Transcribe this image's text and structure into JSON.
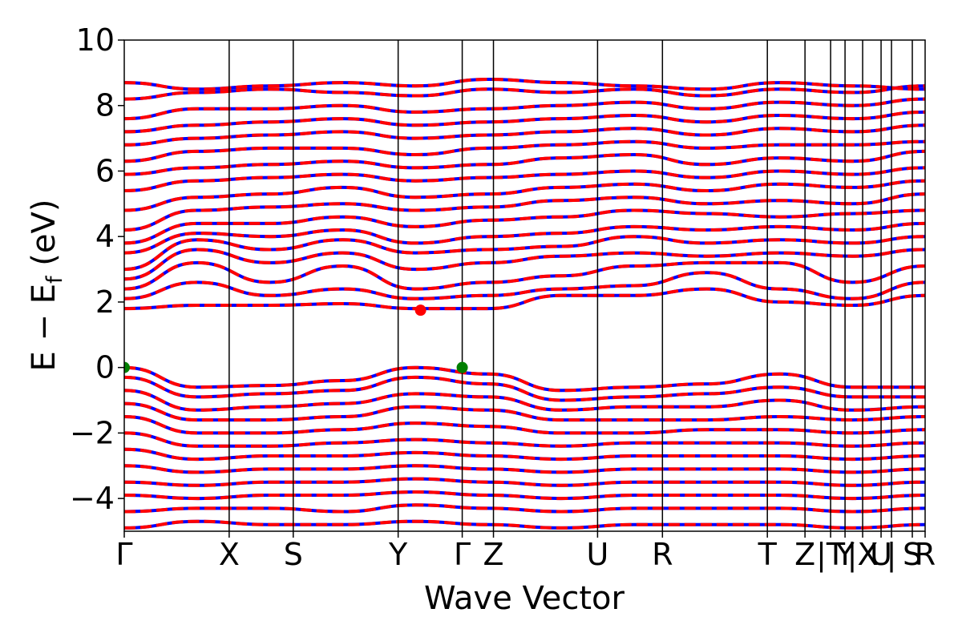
{
  "chart_data": {
    "type": "line",
    "xlabel": "Wave Vector",
    "ylabel_main": "E − E",
    "ylabel_sub": "f",
    "ylabel_unit": " (eV)",
    "ylim": [
      -5,
      10
    ],
    "yticks": [
      {
        "value": 10,
        "label": "10"
      },
      {
        "value": 8,
        "label": "8"
      },
      {
        "value": 6,
        "label": "6"
      },
      {
        "value": 4,
        "label": "4"
      },
      {
        "value": 2,
        "label": "2"
      },
      {
        "value": 0,
        "label": "0"
      },
      {
        "value": -2,
        "label": "−2"
      },
      {
        "value": -4,
        "label": "−4"
      }
    ],
    "xlim": [
      0,
      1
    ],
    "kpoints": [
      {
        "pos": 0.0,
        "label": "Γ"
      },
      {
        "pos": 0.131,
        "label": "X"
      },
      {
        "pos": 0.211,
        "label": "S"
      },
      {
        "pos": 0.342,
        "label": "Y"
      },
      {
        "pos": 0.422,
        "label": "Γ"
      },
      {
        "pos": 0.461,
        "label": "Z"
      },
      {
        "pos": 0.591,
        "label": "U"
      },
      {
        "pos": 0.672,
        "label": "R"
      },
      {
        "pos": 0.803,
        "label": "T"
      },
      {
        "pos": 0.85,
        "label": "Z"
      },
      {
        "pos": 0.882,
        "label": "|T"
      },
      {
        "pos": 0.9,
        "label": "Y"
      },
      {
        "pos": 0.922,
        "label": "|X"
      },
      {
        "pos": 0.945,
        "label": "U"
      },
      {
        "pos": 0.958,
        "label": "|"
      },
      {
        "pos": 0.984,
        "label": "S"
      },
      {
        "pos": 1.0,
        "label": "R"
      }
    ],
    "series_colors": {
      "red": "#ff0000",
      "blue": "#0000ff"
    },
    "vbm": {
      "energy": 0.0,
      "color": "#007f00",
      "points": [
        0.0,
        0.422
      ]
    },
    "cbm": {
      "energy": 1.75,
      "color": "#ff0000",
      "points": [
        0.37
      ]
    },
    "conduction_bands": [
      [
        1.8,
        1.9,
        1.9,
        1.95,
        1.8,
        1.8,
        2.2,
        2.2,
        2.4,
        2.0,
        1.9,
        2.2
      ],
      [
        2.1,
        2.6,
        2.2,
        2.4,
        2.1,
        2.2,
        2.4,
        2.5,
        2.9,
        2.4,
        2.1,
        2.6
      ],
      [
        2.4,
        3.2,
        2.6,
        3.1,
        2.4,
        2.6,
        2.8,
        3.1,
        3.2,
        3.2,
        2.6,
        3.1
      ],
      [
        2.7,
        3.6,
        3.2,
        3.5,
        3.0,
        3.2,
        3.4,
        3.5,
        3.4,
        3.5,
        3.4,
        3.6
      ],
      [
        3.0,
        3.9,
        3.6,
        3.9,
        3.5,
        3.6,
        3.7,
        4.0,
        3.8,
        3.9,
        3.8,
        4.0
      ],
      [
        3.5,
        4.1,
        4.0,
        4.2,
        3.8,
        4.0,
        4.1,
        4.3,
        4.2,
        4.3,
        4.2,
        4.4
      ],
      [
        3.8,
        4.4,
        4.4,
        4.6,
        4.3,
        4.5,
        4.6,
        4.8,
        4.7,
        4.6,
        4.7,
        4.8
      ],
      [
        4.2,
        4.8,
        4.9,
        5.0,
        4.8,
        4.9,
        5.1,
        5.2,
        5.0,
        5.1,
        5.0,
        5.3
      ],
      [
        4.8,
        5.2,
        5.3,
        5.5,
        5.2,
        5.3,
        5.5,
        5.6,
        5.4,
        5.6,
        5.5,
        5.7
      ],
      [
        5.4,
        5.7,
        5.8,
        5.9,
        5.7,
        5.8,
        5.9,
        6.0,
        5.8,
        6.0,
        5.9,
        6.1
      ],
      [
        5.9,
        6.1,
        6.2,
        6.3,
        6.1,
        6.2,
        6.4,
        6.5,
        6.2,
        6.4,
        6.3,
        6.6
      ],
      [
        6.3,
        6.6,
        6.7,
        6.7,
        6.5,
        6.7,
        6.8,
        6.9,
        6.7,
        6.8,
        6.8,
        6.9
      ],
      [
        6.8,
        7.0,
        7.1,
        7.2,
        7.0,
        7.1,
        7.2,
        7.3,
        7.1,
        7.3,
        7.2,
        7.4
      ],
      [
        7.2,
        7.4,
        7.5,
        7.6,
        7.4,
        7.5,
        7.6,
        7.7,
        7.5,
        7.7,
        7.6,
        7.8
      ],
      [
        7.6,
        7.9,
        7.9,
        8.0,
        7.8,
        7.9,
        8.0,
        8.1,
        7.9,
        8.1,
        8.0,
        8.2
      ],
      [
        8.2,
        8.4,
        8.5,
        8.4,
        8.3,
        8.5,
        8.4,
        8.5,
        8.3,
        8.5,
        8.4,
        8.6
      ],
      [
        8.7,
        8.5,
        8.6,
        8.7,
        8.6,
        8.8,
        8.7,
        8.6,
        8.5,
        8.7,
        8.6,
        8.5
      ]
    ],
    "valence_bands": [
      [
        0.0,
        -0.6,
        -0.55,
        -0.4,
        0.0,
        -0.2,
        -0.7,
        -0.6,
        -0.5,
        -0.2,
        -0.6,
        -0.6
      ],
      [
        -0.3,
        -0.9,
        -0.8,
        -0.7,
        -0.3,
        -0.5,
        -1.0,
        -0.9,
        -0.8,
        -0.6,
        -0.9,
        -0.9
      ],
      [
        -0.7,
        -1.3,
        -1.2,
        -1.1,
        -0.8,
        -0.9,
        -1.3,
        -1.2,
        -1.2,
        -1.0,
        -1.3,
        -1.2
      ],
      [
        -1.1,
        -1.6,
        -1.6,
        -1.5,
        -1.2,
        -1.3,
        -1.6,
        -1.6,
        -1.6,
        -1.5,
        -1.6,
        -1.5
      ],
      [
        -1.5,
        -2.0,
        -2.0,
        -1.9,
        -1.7,
        -1.8,
        -2.0,
        -2.0,
        -1.9,
        -1.9,
        -2.0,
        -1.9
      ],
      [
        -2.0,
        -2.4,
        -2.4,
        -2.3,
        -2.2,
        -2.3,
        -2.4,
        -2.3,
        -2.3,
        -2.3,
        -2.4,
        -2.3
      ],
      [
        -2.5,
        -2.8,
        -2.7,
        -2.7,
        -2.6,
        -2.7,
        -2.8,
        -2.7,
        -2.7,
        -2.7,
        -2.8,
        -2.7
      ],
      [
        -3.0,
        -3.2,
        -3.1,
        -3.1,
        -3.0,
        -3.1,
        -3.2,
        -3.1,
        -3.1,
        -3.1,
        -3.2,
        -3.1
      ],
      [
        -3.5,
        -3.6,
        -3.5,
        -3.5,
        -3.4,
        -3.5,
        -3.6,
        -3.5,
        -3.5,
        -3.5,
        -3.6,
        -3.5
      ],
      [
        -3.9,
        -4.0,
        -3.9,
        -3.9,
        -3.8,
        -3.9,
        -4.0,
        -3.9,
        -3.9,
        -3.9,
        -4.0,
        -3.9
      ],
      [
        -4.4,
        -4.3,
        -4.3,
        -4.4,
        -4.2,
        -4.3,
        -4.4,
        -4.3,
        -4.3,
        -4.3,
        -4.4,
        -4.3
      ],
      [
        -4.9,
        -4.7,
        -4.8,
        -4.8,
        -4.7,
        -4.8,
        -4.9,
        -4.8,
        -4.8,
        -4.8,
        -4.9,
        -4.8
      ]
    ]
  }
}
